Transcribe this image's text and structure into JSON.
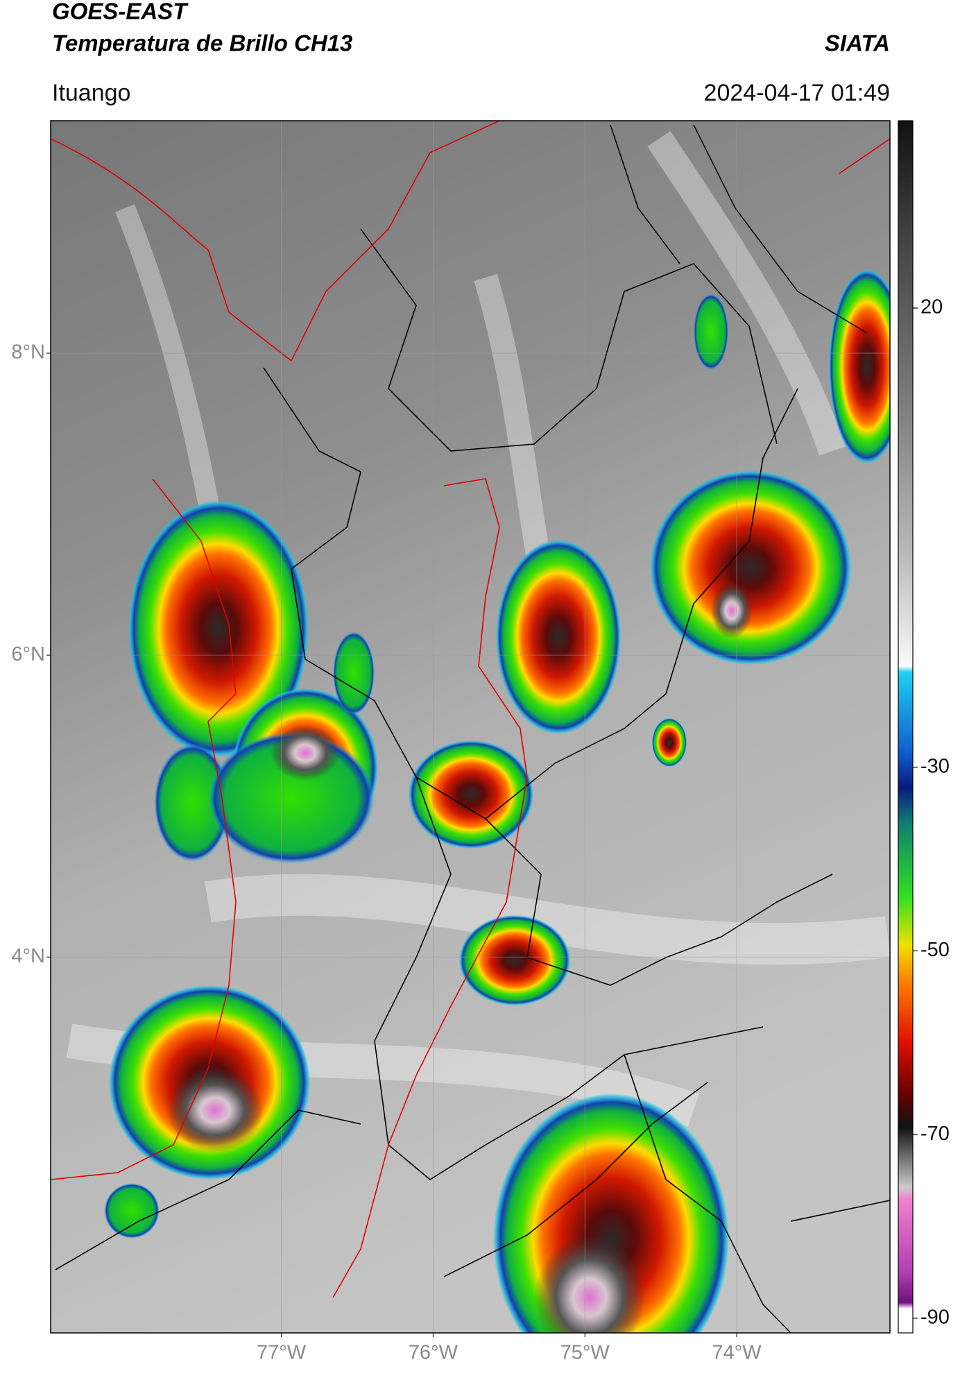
{
  "header": {
    "satellite": "GOES-EAST",
    "product": "Temperatura de Brillo CH13",
    "agency": "SIATA",
    "location": "Ituango",
    "timestamp": "2024-04-17 01:49"
  },
  "map": {
    "lonlim": [
      -78.52,
      -72.99
    ],
    "latlim": [
      1.51,
      9.54
    ],
    "lat_ticks": [
      {
        "value": 8,
        "label": "8°N"
      },
      {
        "value": 6,
        "label": "6°N"
      },
      {
        "value": 4,
        "label": "4°N"
      }
    ],
    "lon_ticks": [
      {
        "value": -77,
        "label": "77°W"
      },
      {
        "value": -76,
        "label": "76°W"
      },
      {
        "value": -75,
        "label": "75°W"
      },
      {
        "value": -74,
        "label": "74°W"
      }
    ]
  },
  "colorbar": {
    "lim": [
      -91.6,
      40.4
    ],
    "ticks": [
      20,
      -30,
      -50,
      -70,
      -90
    ]
  }
}
